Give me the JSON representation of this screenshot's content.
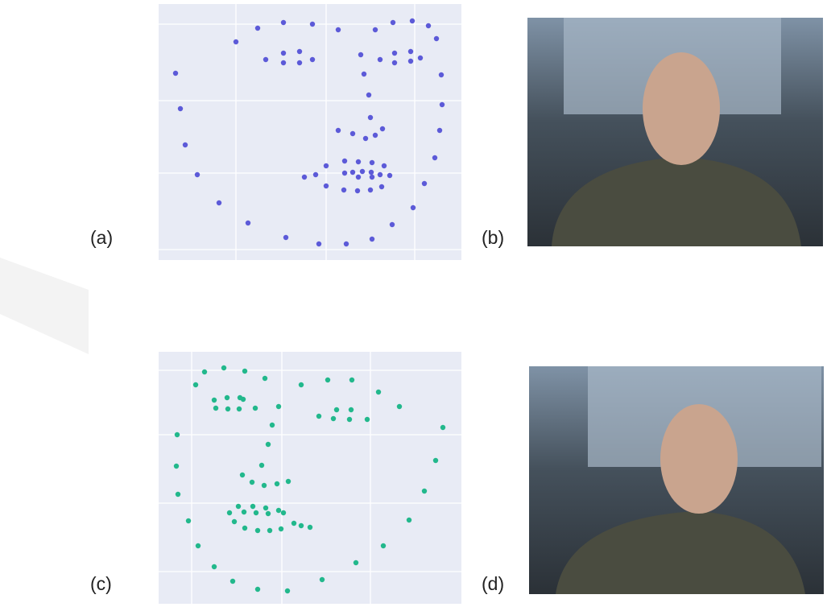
{
  "chart_data": [
    {
      "type": "scatter",
      "label": "(a)",
      "color": "#5c5ad8",
      "grid": true,
      "xlim": [
        0,
        376
      ],
      "ylim": [
        318,
        0
      ],
      "xticks": [
        96,
        208,
        318
      ],
      "yticks": [
        25,
        120,
        210,
        305
      ],
      "x": [
        123,
        155,
        191,
        223,
        269,
        291,
        315,
        335,
        345,
        96,
        133,
        155,
        175,
        191,
        155,
        175,
        251,
        275,
        293,
        313,
        325,
        293,
        313,
        21,
        351,
        255,
        261,
        27,
        352,
        263,
        223,
        241,
        257,
        269,
        278,
        349,
        33,
        343,
        48,
        330,
        75,
        316,
        111,
        290,
        158,
        199,
        233,
        265,
        208,
        231,
        248,
        265,
        280,
        195,
        181,
        231,
        241,
        253,
        264,
        275,
        287,
        208,
        230,
        247,
        263,
        277,
        248,
        265
      ],
      "y": [
        30,
        23,
        25,
        32,
        32,
        23,
        21,
        27,
        43,
        47,
        69,
        61,
        59,
        69,
        73,
        73,
        63,
        69,
        61,
        59,
        67,
        73,
        71,
        86,
        88,
        87,
        113,
        130,
        125,
        141,
        157,
        161,
        167,
        163,
        155,
        157,
        175,
        191,
        212,
        223,
        247,
        253,
        272,
        274,
        290,
        298,
        298,
        292,
        201,
        195,
        196,
        197,
        201,
        212,
        215,
        210,
        209,
        208,
        209,
        212,
        213,
        226,
        231,
        232,
        231,
        227,
        215,
        215
      ]
    },
    {
      "type": "scatter",
      "label": "(c)",
      "color": "#22b88c",
      "grid": true,
      "xlim": [
        0,
        376
      ],
      "ylim": [
        313,
        0
      ],
      "xticks": [
        41,
        153,
        263
      ],
      "yticks": [
        23,
        103,
        188,
        273
      ],
      "x": [
        57,
        81,
        107,
        132,
        46,
        177,
        210,
        240,
        273,
        299,
        69,
        85,
        101,
        105,
        71,
        86,
        100,
        120,
        149,
        141,
        199,
        221,
        239,
        217,
        237,
        259,
        353,
        23,
        136,
        128,
        22,
        344,
        104,
        116,
        131,
        147,
        161,
        24,
        330,
        99,
        117,
        133,
        149,
        88,
        106,
        121,
        136,
        155,
        94,
        107,
        123,
        138,
        152,
        168,
        177,
        188,
        37,
        311,
        49,
        279,
        69,
        245,
        92,
        203,
        123,
        160
      ],
      "y": [
        25,
        20,
        24,
        33,
        41,
        41,
        35,
        35,
        50,
        68,
        60,
        57,
        57,
        59,
        70,
        71,
        71,
        70,
        68,
        91,
        80,
        72,
        72,
        83,
        84,
        84,
        94,
        103,
        115,
        141,
        142,
        135,
        153,
        162,
        166,
        164,
        161,
        177,
        173,
        192,
        192,
        194,
        197,
        200,
        199,
        200,
        201,
        200,
        211,
        219,
        222,
        222,
        220,
        213,
        216,
        218,
        210,
        209,
        241,
        241,
        267,
        262,
        285,
        283,
        295,
        297
      ]
    }
  ],
  "photos": [
    {
      "label": "(b)"
    },
    {
      "label": "(d)"
    }
  ]
}
